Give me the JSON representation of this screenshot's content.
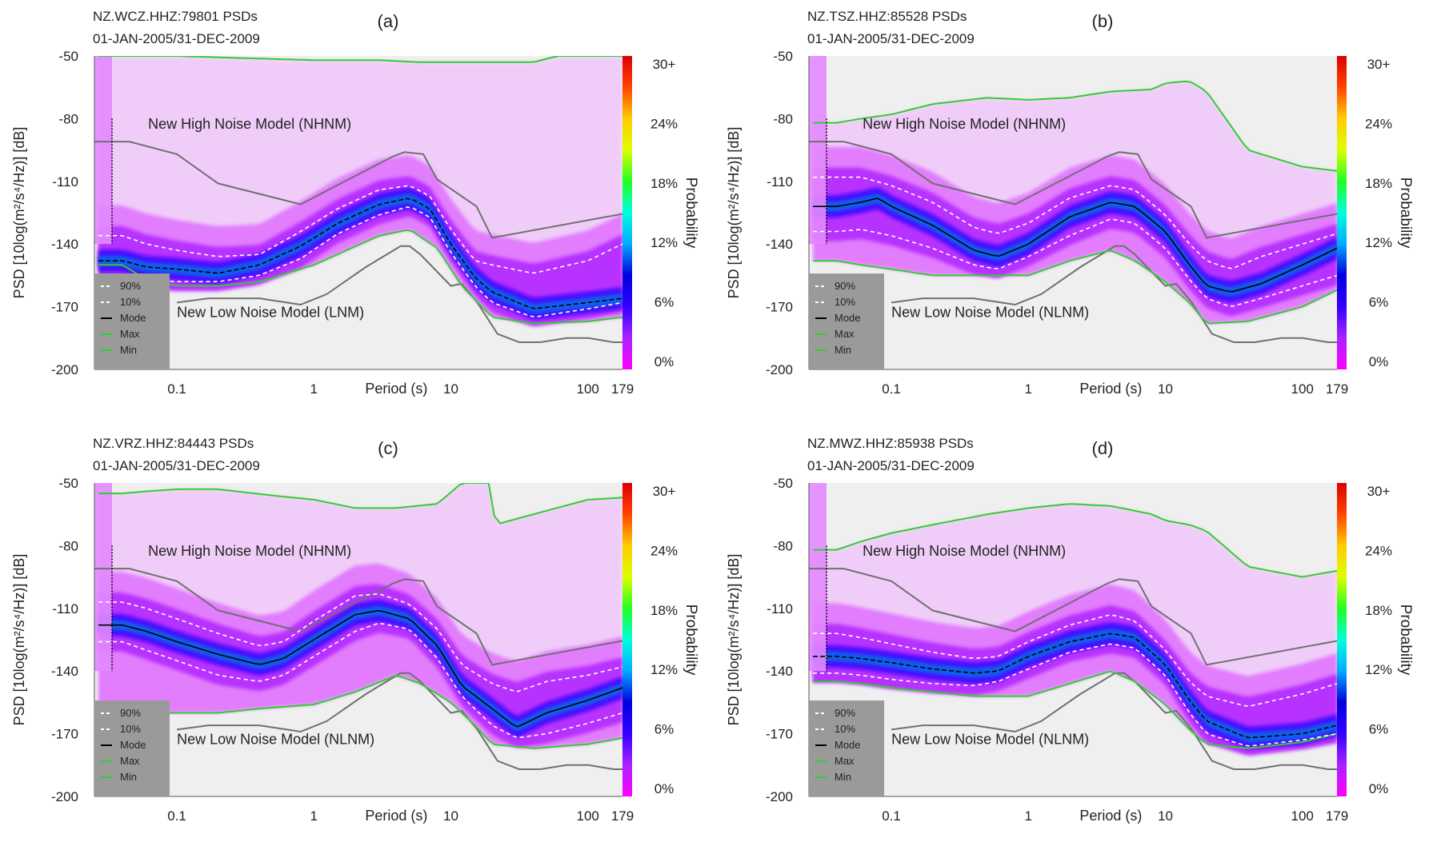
{
  "colors": {
    "plot_bg": "#efefef",
    "max_min_line": "#33cc33",
    "noise_model_line": "#707070",
    "mode_line": "#000000",
    "percentile_line": "#ffffff",
    "legend_bg": "#9a9a9a"
  },
  "colorbar": {
    "ticks": [
      "30+",
      "24%",
      "18%",
      "12%",
      "6%",
      "0%"
    ],
    "label": "Probability",
    "stops": [
      "#ff00ff",
      "#aa22ff",
      "#3300ff",
      "#0000dd",
      "#00aaff",
      "#00ffdd",
      "#22ff22",
      "#ddff00",
      "#ffcc00",
      "#ff4400",
      "#dd0000"
    ]
  },
  "legend": {
    "items": [
      {
        "label": "90%",
        "style": "dashed-white"
      },
      {
        "label": "10%",
        "style": "dashed-white"
      },
      {
        "label": "Mode",
        "style": "solid-black"
      },
      {
        "label": "Max",
        "style": "solid-green"
      },
      {
        "label": "Min",
        "style": "solid-green"
      }
    ]
  },
  "chart_data": [
    {
      "type": "heatmap",
      "panel_label": "(a)",
      "header_line1": "NZ.WCZ.HHZ:79801 PSDs",
      "header_line2": "01-JAN-2005/31-DEC-2009",
      "ylabel": "PSD [10log(m²/s⁴/Hz)] [dB]",
      "xlabel": "Period (s)",
      "yticks": [
        "-50",
        "-80",
        "-110",
        "-140",
        "-170",
        "-200"
      ],
      "ylim": [
        -200,
        -50
      ],
      "xscale": "log",
      "xlim": [
        0.025,
        179
      ],
      "xticks": [
        {
          "v": 0.1,
          "label": "0.1"
        },
        {
          "v": 1,
          "label": "1"
        },
        {
          "v": 10,
          "label": "10"
        },
        {
          "v": 100,
          "label": "100"
        },
        {
          "v": 179,
          "label": "179"
        }
      ],
      "nhnm_label": "New High Noise Model (NHNM)",
      "nlnm_label": "New Low Noise Model (LNM)",
      "mode_shape": "dashed",
      "series": [
        {
          "name": "Mode",
          "x": [
            0.04,
            0.06,
            0.1,
            0.2,
            0.4,
            0.8,
            1.5,
            3,
            5,
            7,
            10,
            15,
            20,
            40,
            100,
            179
          ],
          "y": [
            -148,
            -151,
            -152,
            -154,
            -150,
            -141,
            -130,
            -121,
            -118,
            -123,
            -140,
            -156,
            -163,
            -171,
            -168,
            -166
          ]
        },
        {
          "name": "90%",
          "x": [
            0.04,
            0.06,
            0.1,
            0.2,
            0.4,
            0.8,
            1.5,
            3,
            5,
            7,
            10,
            15,
            20,
            40,
            100,
            179
          ],
          "y": [
            -136,
            -140,
            -143,
            -146,
            -145,
            -134,
            -123,
            -114,
            -112,
            -117,
            -133,
            -148,
            -150,
            -154,
            -148,
            -140
          ]
        },
        {
          "name": "10%",
          "x": [
            0.04,
            0.06,
            0.1,
            0.2,
            0.4,
            0.8,
            1.5,
            3,
            5,
            7,
            10,
            15,
            20,
            40,
            100,
            179
          ],
          "y": [
            -155,
            -157,
            -158,
            -158,
            -155,
            -147,
            -135,
            -126,
            -122,
            -127,
            -144,
            -160,
            -168,
            -175,
            -171,
            -168
          ]
        },
        {
          "name": "Max",
          "x": [
            0.04,
            0.05,
            0.1,
            0.3,
            1,
            3,
            6,
            10,
            40,
            60,
            100,
            179
          ],
          "y": [
            -50,
            -50,
            -50,
            -51,
            -52,
            -52,
            -53,
            -53,
            -53,
            -50,
            -50,
            -50
          ]
        },
        {
          "name": "Min",
          "x": [
            0.04,
            0.06,
            0.1,
            0.2,
            0.4,
            1,
            3,
            5,
            8,
            12,
            20,
            40,
            100,
            179
          ],
          "y": [
            -150,
            -157,
            -160,
            -160,
            -158,
            -150,
            -136,
            -133,
            -142,
            -160,
            -175,
            -178,
            -177,
            -175
          ]
        }
      ]
    },
    {
      "type": "heatmap",
      "panel_label": "(b)",
      "header_line1": "NZ.TSZ.HHZ:85528 PSDs",
      "header_line2": "01-JAN-2005/31-DEC-2009",
      "ylabel": "PSD [10log(m²/s⁴/Hz)] [dB]",
      "xlabel": "Period (s)",
      "yticks": [
        "-50",
        "-80",
        "-110",
        "-140",
        "-170",
        "-200"
      ],
      "ylim": [
        -200,
        -50
      ],
      "xscale": "log",
      "xlim": [
        0.025,
        179
      ],
      "xticks": [
        {
          "v": 0.1,
          "label": "0.1"
        },
        {
          "v": 1,
          "label": "1"
        },
        {
          "v": 10,
          "label": "10"
        },
        {
          "v": 100,
          "label": "100"
        },
        {
          "v": 179,
          "label": "179"
        }
      ],
      "nhnm_label": "New High Noise Model (NHNM)",
      "nlnm_label": "New Low Noise Model (NLNM)",
      "mode_shape": "solid",
      "series": [
        {
          "name": "Mode",
          "x": [
            0.04,
            0.06,
            0.08,
            0.1,
            0.2,
            0.4,
            0.6,
            1,
            2,
            4,
            6,
            10,
            15,
            20,
            30,
            50,
            100,
            179
          ],
          "y": [
            -122,
            -120,
            -118,
            -122,
            -131,
            -143,
            -146,
            -140,
            -127,
            -120,
            -122,
            -134,
            -150,
            -160,
            -163,
            -159,
            -150,
            -142
          ]
        },
        {
          "name": "90%",
          "x": [
            0.04,
            0.06,
            0.1,
            0.2,
            0.4,
            0.6,
            1,
            2,
            4,
            6,
            10,
            15,
            20,
            30,
            50,
            100,
            179
          ],
          "y": [
            -108,
            -108,
            -112,
            -120,
            -132,
            -135,
            -130,
            -118,
            -112,
            -114,
            -126,
            -140,
            -148,
            -152,
            -146,
            -140,
            -135
          ]
        },
        {
          "name": "10%",
          "x": [
            0.04,
            0.06,
            0.1,
            0.2,
            0.4,
            0.6,
            1,
            2,
            4,
            6,
            10,
            15,
            20,
            30,
            50,
            100,
            179
          ],
          "y": [
            -134,
            -133,
            -136,
            -142,
            -150,
            -152,
            -146,
            -136,
            -128,
            -130,
            -142,
            -157,
            -166,
            -170,
            -166,
            -160,
            -155
          ]
        },
        {
          "name": "Max",
          "x": [
            0.04,
            0.06,
            0.1,
            0.2,
            0.5,
            1,
            2,
            4,
            8,
            10,
            15,
            20,
            40,
            100,
            179
          ],
          "y": [
            -82,
            -80,
            -78,
            -73,
            -70,
            -71,
            -70,
            -67,
            -66,
            -63,
            -62,
            -67,
            -95,
            -103,
            -105
          ]
        },
        {
          "name": "Min",
          "x": [
            0.04,
            0.06,
            0.1,
            0.2,
            0.4,
            1,
            2,
            4,
            6,
            10,
            15,
            20,
            40,
            100,
            179
          ],
          "y": [
            -148,
            -150,
            -152,
            -155,
            -155,
            -155,
            -148,
            -143,
            -148,
            -158,
            -168,
            -178,
            -177,
            -170,
            -162
          ]
        }
      ]
    },
    {
      "type": "heatmap",
      "panel_label": "(c)",
      "header_line1": "NZ.VRZ.HHZ:84443 PSDs",
      "header_line2": "01-JAN-2005/31-DEC-2009",
      "ylabel": "PSD [10log(m²/s⁴/Hz)] [dB]",
      "xlabel": "Period (s)",
      "yticks": [
        "-50",
        "-80",
        "-110",
        "-140",
        "-170",
        "-200"
      ],
      "ylim": [
        -200,
        -50
      ],
      "xscale": "log",
      "xlim": [
        0.025,
        179
      ],
      "xticks": [
        {
          "v": 0.1,
          "label": "0.1"
        },
        {
          "v": 1,
          "label": "1"
        },
        {
          "v": 10,
          "label": "10"
        },
        {
          "v": 100,
          "label": "100"
        },
        {
          "v": 179,
          "label": "179"
        }
      ],
      "nhnm_label": "New High Noise Model (NHNM)",
      "nlnm_label": "New Low Noise Model (NLNM)",
      "mode_shape": "solid",
      "series": [
        {
          "name": "Mode",
          "x": [
            0.04,
            0.06,
            0.1,
            0.2,
            0.4,
            0.6,
            1,
            2,
            3,
            5,
            8,
            12,
            20,
            30,
            50,
            100,
            179
          ],
          "y": [
            -118,
            -121,
            -126,
            -132,
            -137,
            -134,
            -125,
            -113,
            -111,
            -115,
            -128,
            -147,
            -158,
            -167,
            -160,
            -154,
            -148
          ]
        },
        {
          "name": "90%",
          "x": [
            0.04,
            0.06,
            0.1,
            0.2,
            0.4,
            0.6,
            1,
            2,
            3,
            5,
            8,
            12,
            20,
            30,
            50,
            100,
            179
          ],
          "y": [
            -107,
            -110,
            -115,
            -122,
            -128,
            -126,
            -116,
            -104,
            -103,
            -108,
            -120,
            -137,
            -146,
            -150,
            -145,
            -142,
            -138
          ]
        },
        {
          "name": "10%",
          "x": [
            0.04,
            0.06,
            0.1,
            0.2,
            0.4,
            0.6,
            1,
            2,
            3,
            5,
            8,
            12,
            20,
            30,
            50,
            100,
            179
          ],
          "y": [
            -126,
            -130,
            -135,
            -142,
            -145,
            -142,
            -133,
            -121,
            -117,
            -120,
            -134,
            -152,
            -166,
            -172,
            -170,
            -165,
            -160
          ]
        },
        {
          "name": "Max",
          "x": [
            0.04,
            0.06,
            0.1,
            0.2,
            0.5,
            1,
            2,
            4,
            8,
            12,
            13,
            20,
            21,
            40,
            100,
            179
          ],
          "y": [
            -55,
            -54,
            -53,
            -53,
            -56,
            -58,
            -62,
            -62,
            -60,
            -50,
            -50,
            -50,
            -70,
            -65,
            -58,
            -57
          ]
        },
        {
          "name": "Min",
          "x": [
            0.04,
            0.06,
            0.1,
            0.2,
            0.4,
            1,
            2,
            4,
            6,
            10,
            15,
            20,
            40,
            100,
            179
          ],
          "y": [
            -158,
            -160,
            -160,
            -160,
            -158,
            -156,
            -150,
            -142,
            -146,
            -155,
            -166,
            -175,
            -177,
            -175,
            -172
          ]
        }
      ]
    },
    {
      "type": "heatmap",
      "panel_label": "(d)",
      "header_line1": "NZ.MWZ.HHZ:85938 PSDs",
      "header_line2": "01-JAN-2005/31-DEC-2009",
      "ylabel": "PSD [10log(m²/s⁴/Hz)] [dB]",
      "xlabel": "Period (s)",
      "yticks": [
        "-50",
        "-80",
        "-110",
        "-140",
        "-170",
        "-200"
      ],
      "ylim": [
        -200,
        -50
      ],
      "xscale": "log",
      "xlim": [
        0.025,
        179
      ],
      "xticks": [
        {
          "v": 0.1,
          "label": "0.1"
        },
        {
          "v": 1,
          "label": "1"
        },
        {
          "v": 10,
          "label": "10"
        },
        {
          "v": 100,
          "label": "100"
        },
        {
          "v": 179,
          "label": "179"
        }
      ],
      "nhnm_label": "New High Noise Model (NHNM)",
      "nlnm_label": "New Low Noise Model (NLNM)",
      "mode_shape": "dashed",
      "series": [
        {
          "name": "Mode",
          "x": [
            0.04,
            0.06,
            0.1,
            0.2,
            0.4,
            0.6,
            1,
            2,
            4,
            6,
            10,
            15,
            20,
            40,
            100,
            179
          ],
          "y": [
            -133,
            -134,
            -136,
            -139,
            -141,
            -140,
            -133,
            -126,
            -122,
            -124,
            -137,
            -154,
            -164,
            -172,
            -170,
            -166
          ]
        },
        {
          "name": "90%",
          "x": [
            0.04,
            0.06,
            0.1,
            0.2,
            0.4,
            0.6,
            1,
            2,
            4,
            6,
            10,
            15,
            20,
            40,
            100,
            179
          ],
          "y": [
            -122,
            -124,
            -127,
            -131,
            -134,
            -133,
            -126,
            -118,
            -113,
            -116,
            -130,
            -145,
            -152,
            -157,
            -151,
            -146
          ]
        },
        {
          "name": "10%",
          "x": [
            0.04,
            0.06,
            0.1,
            0.2,
            0.4,
            0.6,
            1,
            2,
            4,
            6,
            10,
            15,
            20,
            40,
            100,
            179
          ],
          "y": [
            -141,
            -142,
            -144,
            -146,
            -147,
            -145,
            -139,
            -131,
            -127,
            -129,
            -142,
            -160,
            -170,
            -176,
            -173,
            -170
          ]
        },
        {
          "name": "Max",
          "x": [
            0.04,
            0.06,
            0.1,
            0.2,
            0.5,
            1,
            2,
            4,
            8,
            10,
            15,
            20,
            40,
            100,
            179
          ],
          "y": [
            -82,
            -78,
            -74,
            -70,
            -65,
            -62,
            -60,
            -61,
            -65,
            -68,
            -70,
            -73,
            -90,
            -95,
            -92
          ]
        },
        {
          "name": "Min",
          "x": [
            0.04,
            0.06,
            0.1,
            0.2,
            0.4,
            1,
            2,
            4,
            6,
            10,
            15,
            20,
            40,
            100,
            179
          ],
          "y": [
            -145,
            -146,
            -148,
            -150,
            -152,
            -152,
            -146,
            -140,
            -145,
            -156,
            -168,
            -175,
            -177,
            -174,
            -170
          ]
        }
      ]
    }
  ]
}
